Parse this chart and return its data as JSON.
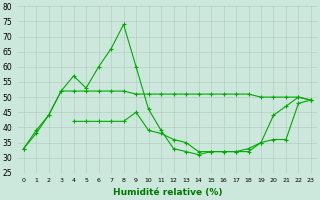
{
  "xlabel": "Humidité relative (%)",
  "bg_color": "#cce8dc",
  "grid_color": "#b0c8bc",
  "line_color": "#00aa00",
  "xlim": [
    -0.5,
    23.5
  ],
  "ylim": [
    25,
    80
  ],
  "yticks": [
    25,
    30,
    35,
    40,
    45,
    50,
    55,
    60,
    65,
    70,
    75,
    80
  ],
  "xticks": [
    0,
    1,
    2,
    3,
    4,
    5,
    6,
    7,
    8,
    9,
    10,
    11,
    12,
    13,
    14,
    15,
    16,
    17,
    18,
    19,
    20,
    21,
    22,
    23
  ],
  "series": [
    [
      33,
      39,
      44,
      52,
      57,
      53,
      60,
      66,
      74,
      60,
      46,
      39,
      33,
      32,
      31,
      32,
      32,
      32,
      33,
      35,
      44,
      47,
      50,
      49
    ],
    [
      33,
      38,
      44,
      52,
      52,
      52,
      52,
      52,
      52,
      51,
      51,
      51,
      51,
      51,
      51,
      51,
      51,
      51,
      51,
      50,
      50,
      50,
      50,
      49
    ],
    [
      null,
      null,
      null,
      null,
      42,
      42,
      42,
      42,
      42,
      45,
      39,
      38,
      36,
      35,
      32,
      32,
      32,
      32,
      32,
      35,
      36,
      36,
      48,
      49
    ]
  ]
}
